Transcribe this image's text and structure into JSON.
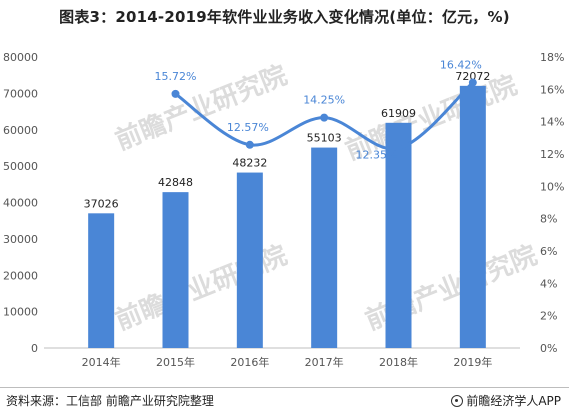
{
  "title": "图表3：2014-2019年软件业业务收入变化情况(单位：亿元，%)",
  "footer": {
    "source": "资料来源：工信部    前瞻产业研究院整理",
    "brand": "前瞻经济学人APP"
  },
  "watermark": "前瞻产业研究院",
  "colors": {
    "bar": "#4a86d6",
    "line": "#4a86d6",
    "pct_label": "#4a86d6"
  },
  "chart_data": {
    "type": "bar+line",
    "title": "图表3：2014-2019年软件业业务收入变化情况(单位：亿元，%)",
    "categories": [
      "2014年",
      "2015年",
      "2016年",
      "2017年",
      "2018年",
      "2019年"
    ],
    "bar_series": {
      "values": [
        37026,
        42848,
        48232,
        55103,
        61909,
        72072
      ]
    },
    "line_series": {
      "values": [
        null,
        15.72,
        12.57,
        14.25,
        12.35,
        16.42
      ],
      "labels": [
        null,
        "15.72%",
        "12.57%",
        "14.25%",
        "12.35%",
        "16.42%"
      ]
    },
    "y_left": {
      "min": 0,
      "max": 80000,
      "ticks": [
        0,
        10000,
        20000,
        30000,
        40000,
        50000,
        60000,
        70000,
        80000
      ]
    },
    "y_right": {
      "min": 0,
      "max": 18,
      "ticks": [
        "0%",
        "2%",
        "4%",
        "6%",
        "8%",
        "10%",
        "12%",
        "14%",
        "16%",
        "18%"
      ]
    },
    "grid": false,
    "legend": "none"
  }
}
